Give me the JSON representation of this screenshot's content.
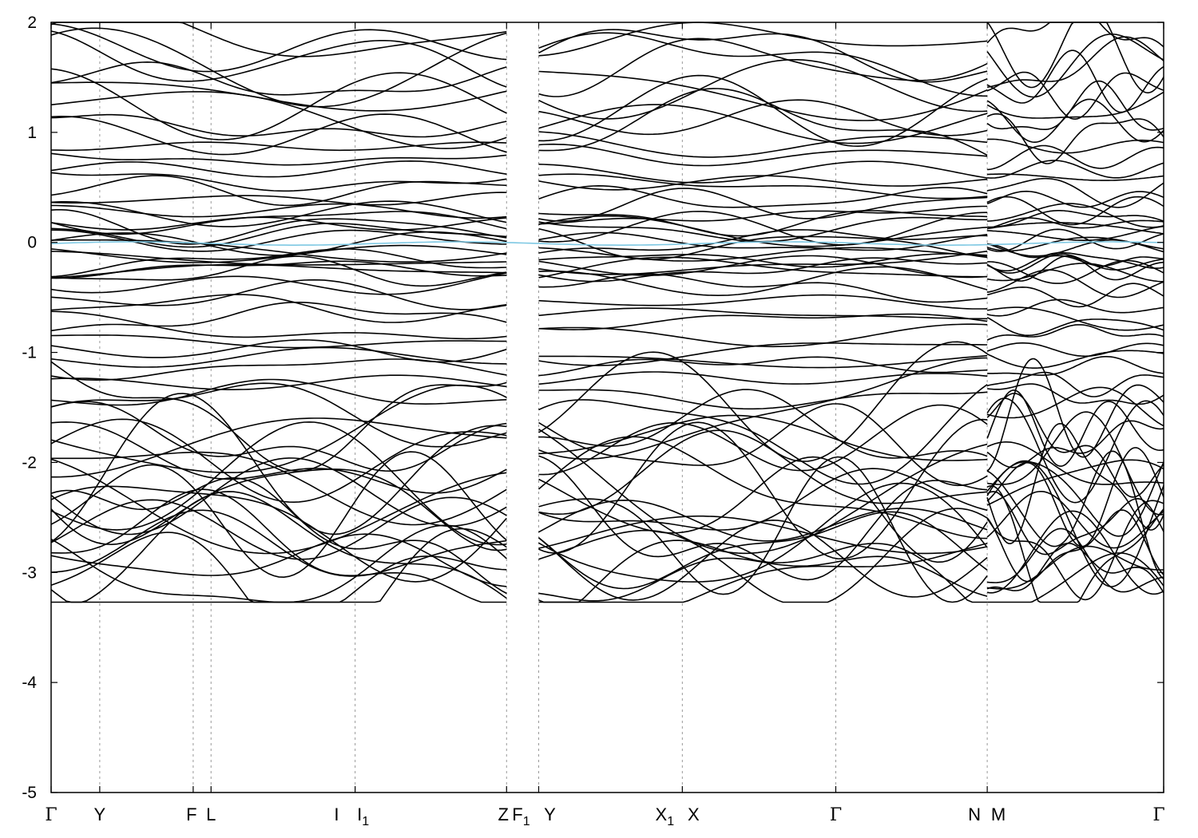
{
  "chart_data": {
    "type": "line",
    "title": "",
    "xlabel": "",
    "ylabel": "",
    "ylim": [
      -5,
      2
    ],
    "y_ticks": [
      "2",
      "1",
      "0",
      "-1",
      "-2",
      "-3",
      "-4",
      "-5"
    ],
    "y_tick_values": [
      2,
      1,
      0,
      -1,
      -2,
      -3,
      -4,
      -5
    ],
    "grid": false,
    "legend": "none",
    "colors": {
      "bands": "#000000",
      "fermi_level": "#7ec8e3",
      "kpoint_lines": "#999999"
    },
    "kpath_segments": [
      {
        "from": "Γ",
        "to": "I",
        "points": [
          "Γ",
          "Y",
          "F",
          "L",
          "I"
        ],
        "x": [
          0.0,
          0.218,
          0.637,
          0.717,
          1.363
        ]
      },
      {
        "from": "I1",
        "to": "Z",
        "points": [
          "I1",
          "Z"
        ],
        "x": [
          1.363,
          2.042
        ]
      },
      {
        "from": "F1",
        "to": "N",
        "points": [
          "F1",
          "Y",
          "X1",
          "X",
          "Γ",
          "N"
        ],
        "x": [
          2.186,
          2.186,
          2.83,
          2.83,
          3.518,
          4.197
        ]
      },
      {
        "from": "M",
        "to": "Γ",
        "points": [
          "M",
          "Γ"
        ],
        "x": [
          4.197,
          4.988
        ]
      }
    ],
    "kpoint_labels": [
      {
        "label": "Γ",
        "x": 0.0
      },
      {
        "label": "Y",
        "x": 0.218
      },
      {
        "label": "F",
        "x": 0.637
      },
      {
        "label": "L",
        "x": 0.717
      },
      {
        "label": "I",
        "x": 1.33
      },
      {
        "label": "I",
        "sub": "1",
        "x": 1.363
      },
      {
        "label": "Z",
        "x": 2.042
      },
      {
        "label": "F",
        "sub": "1",
        "x": 2.186
      },
      {
        "label": "Y",
        "x": 2.186
      },
      {
        "label": "X",
        "sub": "1",
        "x": 2.83
      },
      {
        "label": "X",
        "x": 2.83
      },
      {
        "label": "Γ",
        "x": 3.518
      },
      {
        "label": "N",
        "x": 4.197
      },
      {
        "label": "M",
        "x": 4.197
      },
      {
        "label": "Γ",
        "x": 4.988
      }
    ],
    "band_count": 64,
    "fermi_level": 0.0,
    "energy_range_of_bands": [
      -3.25,
      2.0
    ]
  }
}
